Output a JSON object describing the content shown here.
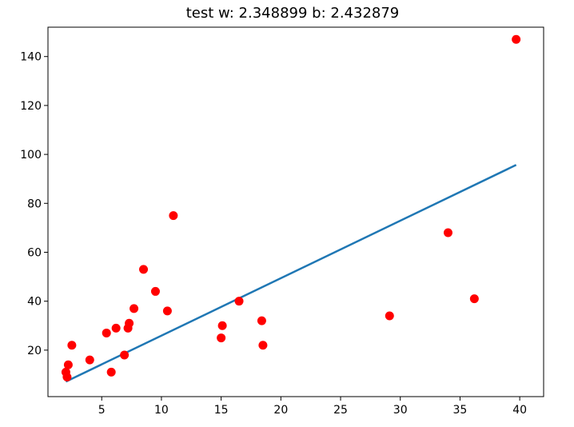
{
  "chart_data": {
    "type": "scatter",
    "title": "test w: 2.348899 b: 2.432879",
    "xlabel": "",
    "ylabel": "",
    "xlim": [
      0.5,
      42
    ],
    "ylim": [
      1,
      152
    ],
    "xticks": [
      5,
      10,
      15,
      20,
      25,
      30,
      35,
      40
    ],
    "yticks": [
      20,
      40,
      60,
      80,
      100,
      120,
      140
    ],
    "grid": false,
    "points_color": "#ff0000",
    "line_color": "#1f77b4",
    "points": [
      {
        "x": 2.0,
        "y": 11
      },
      {
        "x": 2.1,
        "y": 9
      },
      {
        "x": 2.2,
        "y": 14
      },
      {
        "x": 2.5,
        "y": 22
      },
      {
        "x": 4.0,
        "y": 16
      },
      {
        "x": 5.4,
        "y": 27
      },
      {
        "x": 5.8,
        "y": 11
      },
      {
        "x": 6.2,
        "y": 29
      },
      {
        "x": 6.9,
        "y": 18
      },
      {
        "x": 7.2,
        "y": 29
      },
      {
        "x": 7.3,
        "y": 31
      },
      {
        "x": 7.7,
        "y": 37
      },
      {
        "x": 8.5,
        "y": 53
      },
      {
        "x": 9.5,
        "y": 44
      },
      {
        "x": 10.5,
        "y": 36
      },
      {
        "x": 11.0,
        "y": 75
      },
      {
        "x": 15.0,
        "y": 25
      },
      {
        "x": 15.1,
        "y": 30
      },
      {
        "x": 16.5,
        "y": 40
      },
      {
        "x": 18.4,
        "y": 32
      },
      {
        "x": 18.5,
        "y": 22
      },
      {
        "x": 29.1,
        "y": 34
      },
      {
        "x": 34.0,
        "y": 68
      },
      {
        "x": 36.2,
        "y": 41
      },
      {
        "x": 39.7,
        "y": 147
      }
    ],
    "fit_line": {
      "w": 2.348899,
      "b": 2.432879,
      "x_start": 2.0,
      "x_end": 39.7
    }
  }
}
